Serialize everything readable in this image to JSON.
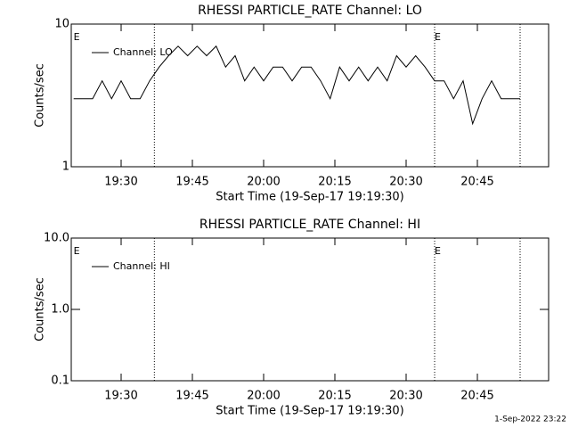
{
  "chart_data": [
    {
      "type": "line",
      "title": "RHESSI PARTICLE_RATE Channel: LO",
      "xlabel": "Start Time (19-Sep-17 19:19:30)",
      "ylabel": "Counts/sec",
      "log_y": true,
      "xlim": [
        "19:19:30",
        "21:00"
      ],
      "ylim": [
        1,
        10
      ],
      "yticks": [
        1,
        10
      ],
      "xticks": [
        "19:30",
        "19:45",
        "20:00",
        "20:15",
        "20:30",
        "20:45"
      ],
      "vlines": [
        "19:37",
        "20:36",
        "20:54"
      ],
      "flags": [
        {
          "x": "19:20",
          "label": "E"
        },
        {
          "x": "20:36",
          "label": "E"
        }
      ],
      "x": [
        "19:20",
        "19:22",
        "19:24",
        "19:26",
        "19:28",
        "19:30",
        "19:32",
        "19:34",
        "19:36",
        "19:38",
        "19:40",
        "19:42",
        "19:44",
        "19:46",
        "19:48",
        "19:50",
        "19:52",
        "19:54",
        "19:56",
        "19:58",
        "20:00",
        "20:02",
        "20:04",
        "20:06",
        "20:08",
        "20:10",
        "20:12",
        "20:14",
        "20:16",
        "20:18",
        "20:20",
        "20:22",
        "20:24",
        "20:26",
        "20:28",
        "20:30",
        "20:32",
        "20:34",
        "20:36",
        "20:38",
        "20:40",
        "20:42",
        "20:44",
        "20:46",
        "20:48",
        "20:50",
        "20:52",
        "20:54"
      ],
      "series": [
        {
          "name": "Channel: LO",
          "color": "#000000",
          "values": [
            3,
            3,
            3,
            4,
            3,
            4,
            3,
            3,
            4,
            5,
            6,
            7,
            6,
            7,
            6,
            7,
            5,
            6,
            4,
            5,
            4,
            5,
            5,
            4,
            5,
            5,
            4,
            3,
            5,
            4,
            5,
            4,
            5,
            4,
            6,
            5,
            6,
            5,
            4,
            4,
            3,
            4,
            2,
            3,
            4,
            3,
            3,
            3
          ]
        }
      ]
    },
    {
      "type": "line",
      "title": "RHESSI PARTICLE_RATE Channel: HI",
      "xlabel": "Start Time (19-Sep-17 19:19:30)",
      "ylabel": "Counts/sec",
      "log_y": true,
      "xlim": [
        "19:19:30",
        "21:00"
      ],
      "ylim": [
        0.1,
        10
      ],
      "yticks": [
        {
          "value": 0.1,
          "label": "0.1"
        },
        {
          "value": 1,
          "label": "1.0"
        },
        {
          "value": 10,
          "label": "10.0"
        }
      ],
      "xticks": [
        "19:30",
        "19:45",
        "20:00",
        "20:15",
        "20:30",
        "20:45"
      ],
      "vlines": [
        "19:37",
        "20:36",
        "20:54"
      ],
      "flags": [
        {
          "x": "19:20",
          "label": "E"
        },
        {
          "x": "20:36",
          "label": "E"
        }
      ],
      "x": [],
      "series": [
        {
          "name": "Channel: HI",
          "color": "#000000",
          "values": []
        }
      ]
    }
  ],
  "footer": "1-Sep-2022 23:22"
}
